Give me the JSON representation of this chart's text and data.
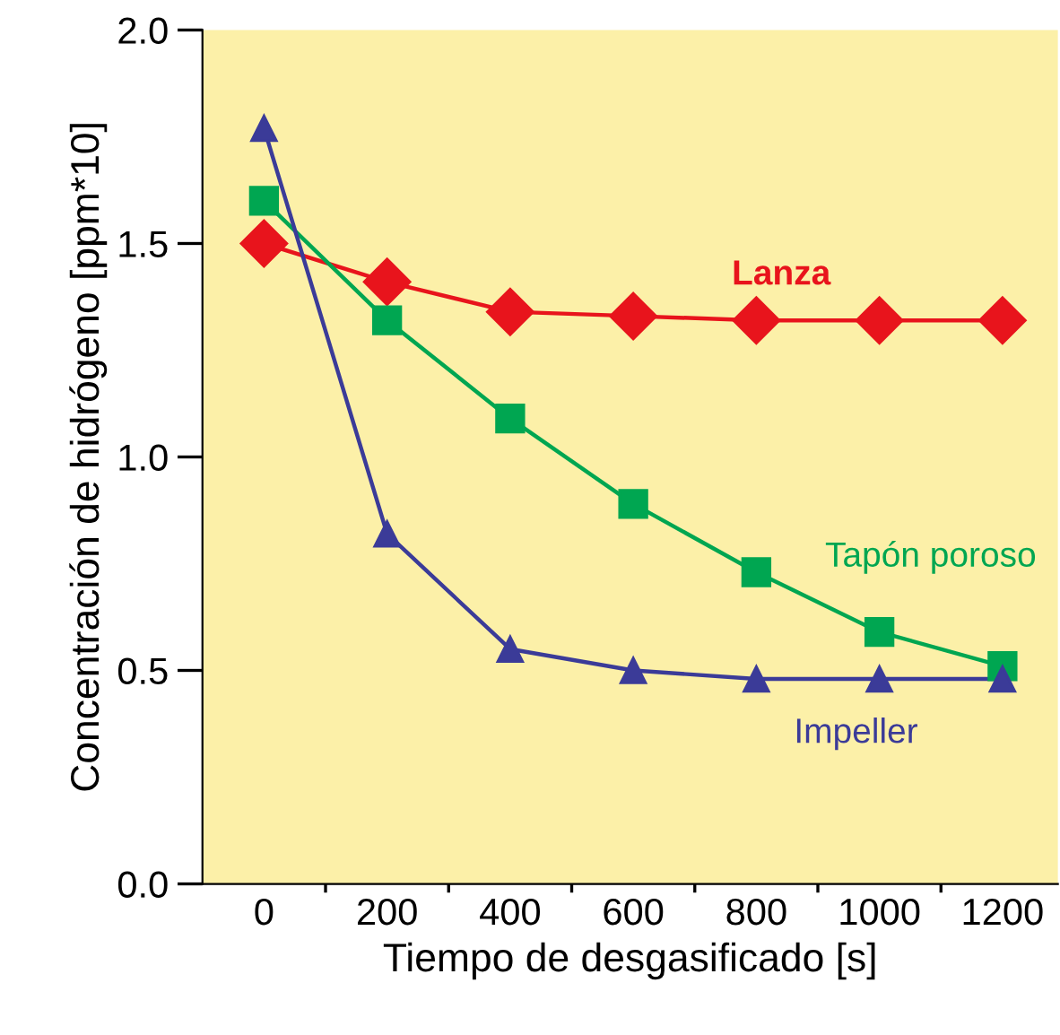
{
  "chart_data": {
    "type": "line",
    "xlabel": "Tiempo de desgasificado [s]",
    "ylabel": "Concentración de hidrógeno [ppm*10]",
    "x": [
      0,
      200,
      400,
      600,
      800,
      1000,
      1200
    ],
    "series": [
      {
        "name": "Lanza",
        "color": "#e8141c",
        "marker": "diamond",
        "values": [
          1.5,
          1.41,
          1.34,
          1.33,
          1.32,
          1.32,
          1.32
        ]
      },
      {
        "name": "Tapón poroso",
        "color": "#00a651",
        "marker": "square",
        "values": [
          1.6,
          1.32,
          1.09,
          0.89,
          0.73,
          0.59,
          0.51
        ]
      },
      {
        "name": "Impeller",
        "color": "#3b3b98",
        "marker": "triangle",
        "values": [
          1.77,
          0.82,
          0.55,
          0.5,
          0.48,
          0.48,
          0.48
        ]
      }
    ],
    "xlim": [
      -100,
      1290
    ],
    "ylim": [
      0,
      2.0
    ],
    "xticks": [
      0,
      {
        "value": 100,
        "label": null
      },
      200,
      {
        "value": 300,
        "label": null
      },
      400,
      {
        "value": 500,
        "label": null
      },
      600,
      {
        "value": 700,
        "label": null
      },
      800,
      {
        "value": 900,
        "label": null
      },
      1000,
      {
        "value": 1100,
        "label": null
      },
      1200
    ],
    "yticks": [
      {
        "value": 0,
        "label": "0.0"
      },
      0.5,
      {
        "value": 1,
        "label": "1.0"
      },
      1.5,
      {
        "value": 2,
        "label": "2.0"
      }
    ],
    "grid": false,
    "legend": false
  }
}
